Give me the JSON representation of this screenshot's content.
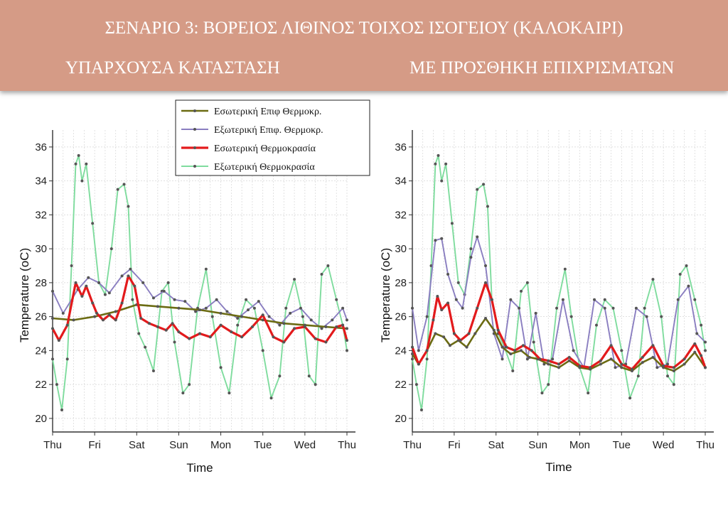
{
  "header": {
    "title": "ΣΕΝΑΡΙΟ 3: ΒΟΡΕΙΟΣ ΛΙΘΙΝΟΣ ΤΟΙΧΟΣ ΙΣΟΓΕΙΟΥ (ΚΑΛΟΚΑΙΡΙ)",
    "left_subtitle": "ΥΠΑΡΧΟΥΣΑ ΚΑΤΑΣΤΑΣΗ",
    "right_subtitle": "ΜΕ ΠΡΟΣΘΗΚΗ ΕΠΙΧΡΙΣΜΑΤΩΝ",
    "background_color": "#d59b86"
  },
  "chart_data": [
    {
      "type": "line",
      "xlabel": "Time",
      "ylabel": "Temperature (oC)",
      "x_ticks": [
        "Thu",
        "Fri",
        "Sat",
        "Sun",
        "Mon",
        "Tue",
        "Wed",
        "Thu"
      ],
      "y_ticks": [
        20,
        22,
        24,
        26,
        28,
        30,
        32,
        34,
        36
      ],
      "xlim": [
        0,
        7
      ],
      "ylim": [
        19.2,
        37
      ],
      "grid": true,
      "legend": "top-center",
      "series": [
        {
          "name": "Εσωτερική Επιφ Θερμοκρ.",
          "color": "#6b6b12",
          "x": [
            0,
            0.5,
            1,
            1.5,
            2,
            2.5,
            3,
            3.5,
            4,
            4.5,
            5,
            5.5,
            6,
            6.5,
            7
          ],
          "values": [
            25.9,
            25.8,
            26.0,
            26.3,
            26.7,
            26.6,
            26.5,
            26.4,
            26.2,
            26.0,
            25.8,
            25.6,
            25.5,
            25.4,
            25.3
          ]
        },
        {
          "name": "Εξωτερική Επιφ. Θερμοκρ.",
          "color": "#8a7ec0",
          "x": [
            0,
            0.25,
            0.6,
            0.85,
            1.1,
            1.35,
            1.65,
            1.85,
            2.15,
            2.4,
            2.65,
            2.9,
            3.15,
            3.4,
            3.65,
            3.9,
            4.15,
            4.4,
            4.65,
            4.9,
            5.15,
            5.4,
            5.65,
            5.9,
            6.15,
            6.4,
            6.65,
            6.9,
            7
          ],
          "values": [
            27.5,
            26.2,
            27.6,
            28.3,
            28.0,
            27.4,
            28.4,
            28.8,
            28.0,
            27.1,
            27.5,
            27.0,
            26.9,
            26.3,
            26.5,
            27.0,
            26.3,
            25.9,
            26.4,
            26.9,
            26.0,
            25.5,
            26.2,
            26.5,
            25.8,
            25.3,
            25.8,
            26.5,
            25.8
          ]
        },
        {
          "name": "Εσωτερική Θερμοκρασία",
          "color": "#e31a1c",
          "x": [
            0,
            0.15,
            0.35,
            0.55,
            0.7,
            0.8,
            0.95,
            1.05,
            1.2,
            1.35,
            1.5,
            1.65,
            1.8,
            1.95,
            2.1,
            2.3,
            2.5,
            2.7,
            2.85,
            3.0,
            3.25,
            3.5,
            3.75,
            4.0,
            4.25,
            4.5,
            4.75,
            5.0,
            5.25,
            5.5,
            5.75,
            6.0,
            6.25,
            6.5,
            6.75,
            6.9,
            7
          ],
          "values": [
            25.3,
            24.6,
            25.5,
            28.0,
            27.2,
            27.8,
            26.8,
            26.2,
            25.8,
            26.1,
            25.8,
            26.8,
            28.4,
            27.8,
            25.9,
            25.6,
            25.4,
            25.2,
            25.6,
            25.1,
            24.7,
            25.0,
            24.8,
            25.5,
            25.1,
            24.8,
            25.4,
            26.1,
            24.8,
            24.5,
            25.3,
            25.4,
            24.7,
            24.5,
            25.4,
            25.5,
            24.6
          ]
        },
        {
          "name": "Εξωτερική Θερμοκρασία",
          "color": "#7fdc9e",
          "x": [
            0,
            0.1,
            0.22,
            0.35,
            0.45,
            0.55,
            0.62,
            0.7,
            0.8,
            0.95,
            1.1,
            1.25,
            1.4,
            1.55,
            1.7,
            1.8,
            1.9,
            2.05,
            2.2,
            2.4,
            2.6,
            2.75,
            2.9,
            3.1,
            3.25,
            3.45,
            3.65,
            3.8,
            4.0,
            4.2,
            4.4,
            4.6,
            4.8,
            5.0,
            5.2,
            5.4,
            5.55,
            5.75,
            5.95,
            6.1,
            6.25,
            6.4,
            6.55,
            6.75,
            6.9,
            7
          ],
          "values": [
            23.5,
            22.0,
            20.5,
            23.5,
            29.0,
            35.0,
            35.5,
            34.0,
            35.0,
            31.5,
            28.0,
            27.3,
            30.0,
            33.5,
            33.8,
            32.5,
            27.0,
            25.0,
            24.2,
            22.8,
            27.5,
            28.0,
            24.5,
            21.5,
            22.0,
            26.5,
            28.8,
            26.0,
            23.0,
            21.5,
            25.5,
            27.0,
            26.5,
            24.0,
            21.2,
            22.5,
            26.5,
            28.2,
            26.0,
            22.5,
            22.0,
            28.5,
            29.0,
            27.0,
            25.5,
            24.0
          ]
        }
      ]
    },
    {
      "type": "line",
      "xlabel": "Time",
      "ylabel": "Temperature (oC)",
      "x_ticks": [
        "Thu",
        "Fri",
        "Sat",
        "Sun",
        "Mon",
        "Tue",
        "Wed",
        "Thu"
      ],
      "y_ticks": [
        20,
        22,
        24,
        26,
        28,
        30,
        32,
        34,
        36
      ],
      "xlim": [
        0,
        7
      ],
      "ylim": [
        19.2,
        37
      ],
      "grid": true,
      "series": [
        {
          "name": "Εσωτερική Επιφ Θερμοκρ.",
          "color": "#6b6b12",
          "x": [
            0,
            0.15,
            0.35,
            0.55,
            0.75,
            0.9,
            1.1,
            1.3,
            1.5,
            1.75,
            1.95,
            2.15,
            2.35,
            2.6,
            2.8,
            3.0,
            3.25,
            3.5,
            3.75,
            4.0,
            4.25,
            4.5,
            4.75,
            5.0,
            5.25,
            5.5,
            5.75,
            6.0,
            6.25,
            6.5,
            6.75,
            7
          ],
          "values": [
            23.8,
            23.2,
            24.0,
            25.0,
            24.8,
            24.3,
            24.6,
            24.2,
            25.0,
            25.9,
            25.2,
            24.2,
            23.8,
            24.0,
            23.6,
            23.5,
            23.2,
            23.0,
            23.4,
            23.0,
            22.9,
            23.2,
            23.5,
            23.0,
            22.8,
            23.3,
            23.6,
            23.0,
            22.8,
            23.2,
            23.9,
            23.0
          ]
        },
        {
          "name": "Εξωτερική Επιφ. Θερμοκρ.",
          "color": "#8a7ec0",
          "x": [
            0,
            0.15,
            0.35,
            0.55,
            0.7,
            0.85,
            1.05,
            1.2,
            1.4,
            1.55,
            1.75,
            1.95,
            2.15,
            2.35,
            2.55,
            2.75,
            2.95,
            3.15,
            3.35,
            3.6,
            3.85,
            4.1,
            4.35,
            4.6,
            4.85,
            5.1,
            5.35,
            5.6,
            5.85,
            6.1,
            6.35,
            6.6,
            6.8,
            7
          ],
          "values": [
            26.5,
            24.0,
            26.0,
            30.5,
            30.6,
            28.5,
            27.0,
            26.5,
            29.5,
            30.7,
            29.0,
            25.0,
            23.5,
            27.0,
            26.5,
            23.5,
            26.2,
            23.2,
            23.5,
            27.0,
            24.0,
            23.0,
            27.0,
            26.5,
            23.0,
            23.2,
            26.5,
            26.0,
            23.0,
            23.2,
            27.0,
            27.8,
            25.0,
            24.5
          ]
        },
        {
          "name": "Εσωτερική Θερμοκρασία",
          "color": "#e31a1c",
          "x": [
            0,
            0.15,
            0.35,
            0.5,
            0.6,
            0.7,
            0.85,
            1.0,
            1.15,
            1.35,
            1.55,
            1.75,
            1.9,
            2.05,
            2.25,
            2.45,
            2.65,
            2.85,
            3.05,
            3.25,
            3.5,
            3.75,
            4.0,
            4.25,
            4.5,
            4.75,
            5.0,
            5.25,
            5.5,
            5.75,
            6.0,
            6.25,
            6.5,
            6.75,
            6.9,
            7
          ],
          "values": [
            24.2,
            23.2,
            24.0,
            25.8,
            27.2,
            26.4,
            26.8,
            25.0,
            24.6,
            25.0,
            26.5,
            28.0,
            27.0,
            25.2,
            24.2,
            24.0,
            24.3,
            24.0,
            23.5,
            23.4,
            23.2,
            23.6,
            23.1,
            23.0,
            23.4,
            24.3,
            23.2,
            22.9,
            23.6,
            24.3,
            23.1,
            23.0,
            23.5,
            24.4,
            23.7,
            23.0
          ]
        },
        {
          "name": "Εξωτερική Θερμοκρασία",
          "color": "#7fdc9e",
          "x": [
            0,
            0.1,
            0.22,
            0.35,
            0.45,
            0.55,
            0.62,
            0.7,
            0.8,
            0.95,
            1.1,
            1.25,
            1.4,
            1.55,
            1.7,
            1.8,
            1.9,
            2.05,
            2.2,
            2.4,
            2.6,
            2.75,
            2.9,
            3.1,
            3.25,
            3.45,
            3.65,
            3.8,
            4.0,
            4.2,
            4.4,
            4.6,
            4.8,
            5.0,
            5.2,
            5.4,
            5.55,
            5.75,
            5.95,
            6.1,
            6.25,
            6.4,
            6.55,
            6.75,
            6.9,
            7
          ],
          "values": [
            23.5,
            22.0,
            20.5,
            23.5,
            29.0,
            35.0,
            35.5,
            34.0,
            35.0,
            31.5,
            28.0,
            27.3,
            30.0,
            33.5,
            33.8,
            32.5,
            27.0,
            25.0,
            24.2,
            22.8,
            27.5,
            28.0,
            24.5,
            21.5,
            22.0,
            26.5,
            28.8,
            26.0,
            23.0,
            21.5,
            25.5,
            27.0,
            26.5,
            24.0,
            21.2,
            22.5,
            26.5,
            28.2,
            26.0,
            22.5,
            22.0,
            28.5,
            29.0,
            27.0,
            25.5,
            24.0
          ]
        }
      ]
    }
  ]
}
